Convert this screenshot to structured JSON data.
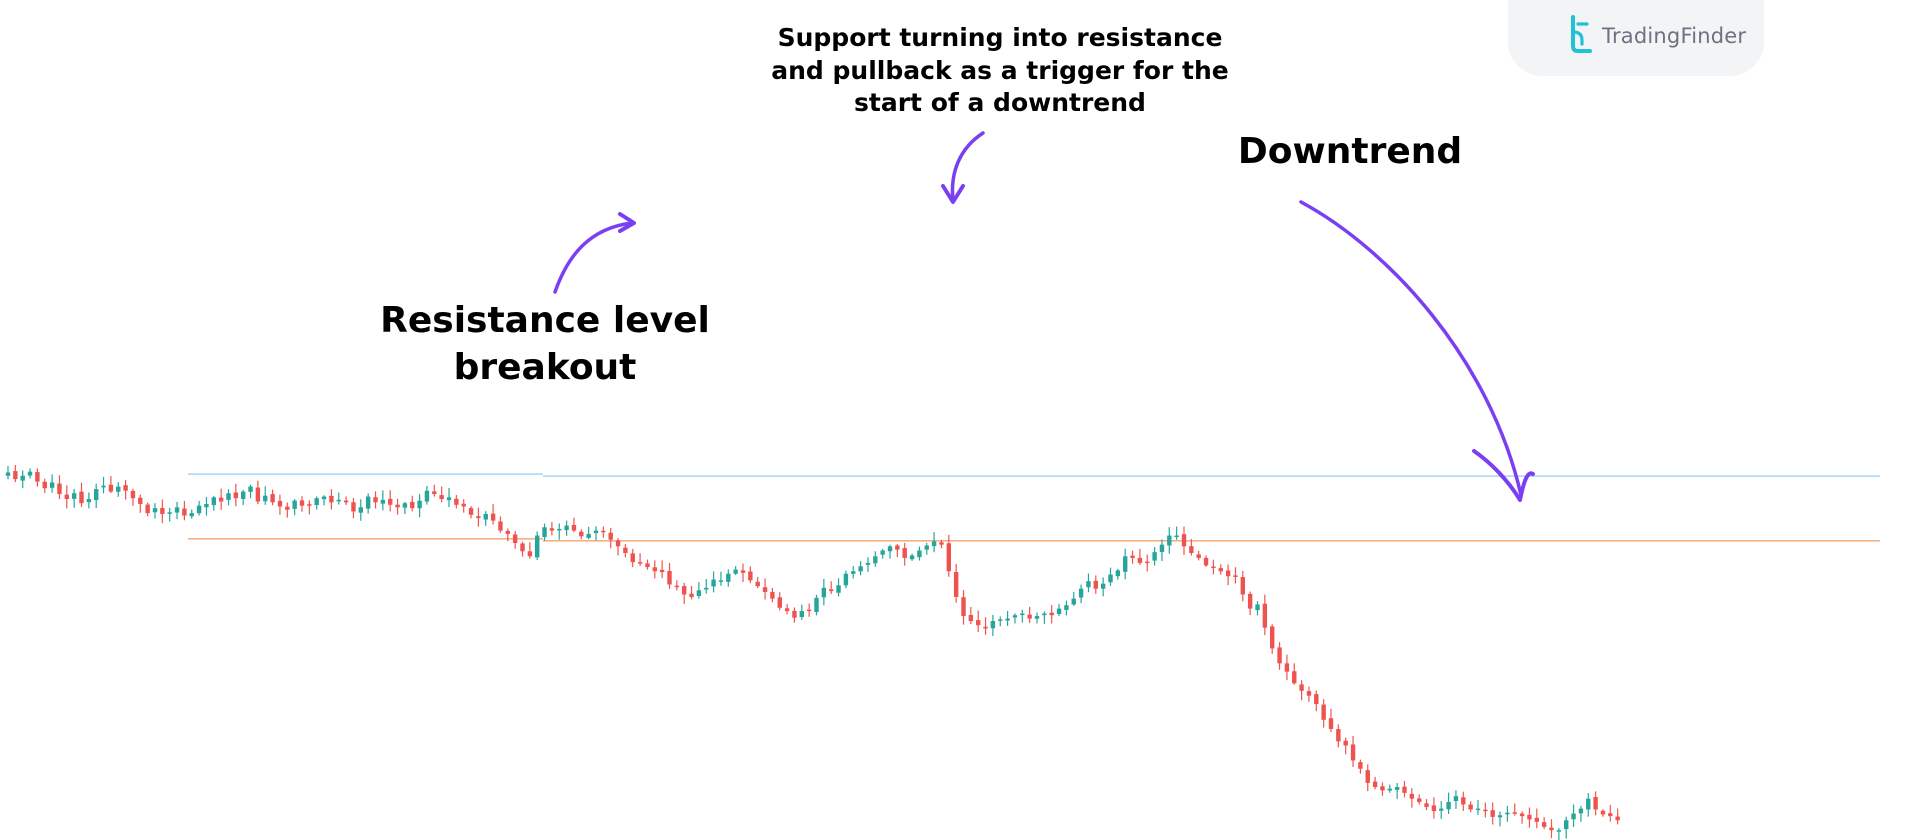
{
  "brand": {
    "name": "TradingFinder",
    "color": "#22c1d6"
  },
  "annotations": {
    "support": [
      "Support turning into resistance",
      "and pullback as a trigger for the",
      "start of a downtrend"
    ],
    "breakout": [
      "Resistance level",
      "breakout"
    ],
    "downtrend": "Downtrend"
  },
  "colors": {
    "up": "#26a69a",
    "down": "#ef5350",
    "resistance_line": "#f7a36b",
    "upper_line": "#a8d4f5",
    "arrow": "#7b3ff2"
  },
  "chart_data": {
    "type": "candlestick",
    "title": "",
    "xlabel": "",
    "ylabel": "",
    "axes_visible": false,
    "grid": false,
    "levels": [
      {
        "label": "upper level",
        "value": 100.6
      },
      {
        "label": "resistance level",
        "value": 92.8
      }
    ],
    "series": [
      {
        "values": [
          100.8,
          100.0,
          100.4,
          100.9,
          99.7,
          98.9,
          99.6,
          98.2,
          97.6,
          98.3,
          97.1,
          97.6,
          98.8,
          99.2,
          98.5,
          99.1,
          98.6,
          97.7,
          97.0,
          95.9,
          96.5,
          95.8,
          96.0,
          96.6,
          95.6,
          95.9,
          96.8,
          97.0,
          97.8,
          97.3,
          98.3,
          97.7,
          98.5,
          99.1,
          97.3,
          98.0,
          97.2,
          96.7,
          96.3,
          97.4,
          96.8,
          96.9,
          97.7,
          97.9,
          97.2,
          97.5,
          97.2,
          96.1,
          96.6,
          97.9,
          97.2,
          97.5,
          96.9,
          96.6,
          97.1,
          96.5,
          97.4,
          98.6,
          98.2,
          97.6,
          97.8,
          96.9,
          96.7,
          95.7,
          95.3,
          95.8,
          95.0,
          93.8,
          93.4,
          92.3,
          91.3,
          90.7,
          93.2,
          94.2,
          93.8,
          94.0,
          94.4,
          93.8,
          93.1,
          93.4,
          93.8,
          93.7,
          92.7,
          91.9,
          91.1,
          90.0,
          89.9,
          89.4,
          88.9,
          88.8,
          87.3,
          87.1,
          86.1,
          85.8,
          86.6,
          86.9,
          87.9,
          87.8,
          88.6,
          89.1,
          88.7,
          87.8,
          87.1,
          86.4,
          85.6,
          84.5,
          84.1,
          83.3,
          84.1,
          84.1,
          85.7,
          86.9,
          86.5,
          87.2,
          88.6,
          88.9,
          89.5,
          89.9,
          90.7,
          91.4,
          91.9,
          91.5,
          90.5,
          90.8,
          91.4,
          92.0,
          92.5,
          92.1,
          88.9,
          85.8,
          83.5,
          82.9,
          82.4,
          82.0,
          82.9,
          83.1,
          83.2,
          83.6,
          83.8,
          83.2,
          83.5,
          83.8,
          83.6,
          84.4,
          84.8,
          85.6,
          86.8,
          87.7,
          86.8,
          87.4,
          88.5,
          89.0,
          90.7,
          90.5,
          89.9,
          90.0,
          91.2,
          92.1,
          93.2,
          93.2,
          91.9,
          91.1,
          90.5,
          89.6,
          89.3,
          88.9,
          88.3,
          88.2,
          86.1,
          84.4,
          84.9,
          82.1,
          79.6,
          77.8,
          76.8,
          75.4,
          74.5,
          73.9,
          72.9,
          71.0,
          69.9,
          68.4,
          67.9,
          66.1,
          65.1,
          63.4,
          62.9,
          62.5,
          62.7,
          62.9,
          62.2,
          61.5,
          61.1,
          60.5,
          60.0,
          60.3,
          61.1,
          61.8,
          60.8,
          60.2,
          60.3,
          60.1,
          59.3,
          59.5,
          59.8,
          59.8,
          59.4,
          59.0,
          58.7,
          58.1,
          57.7,
          57.7,
          58.9,
          59.7,
          60.3,
          61.5,
          60.2,
          59.6,
          59.4,
          58.9
        ],
        "name": ""
      }
    ]
  }
}
